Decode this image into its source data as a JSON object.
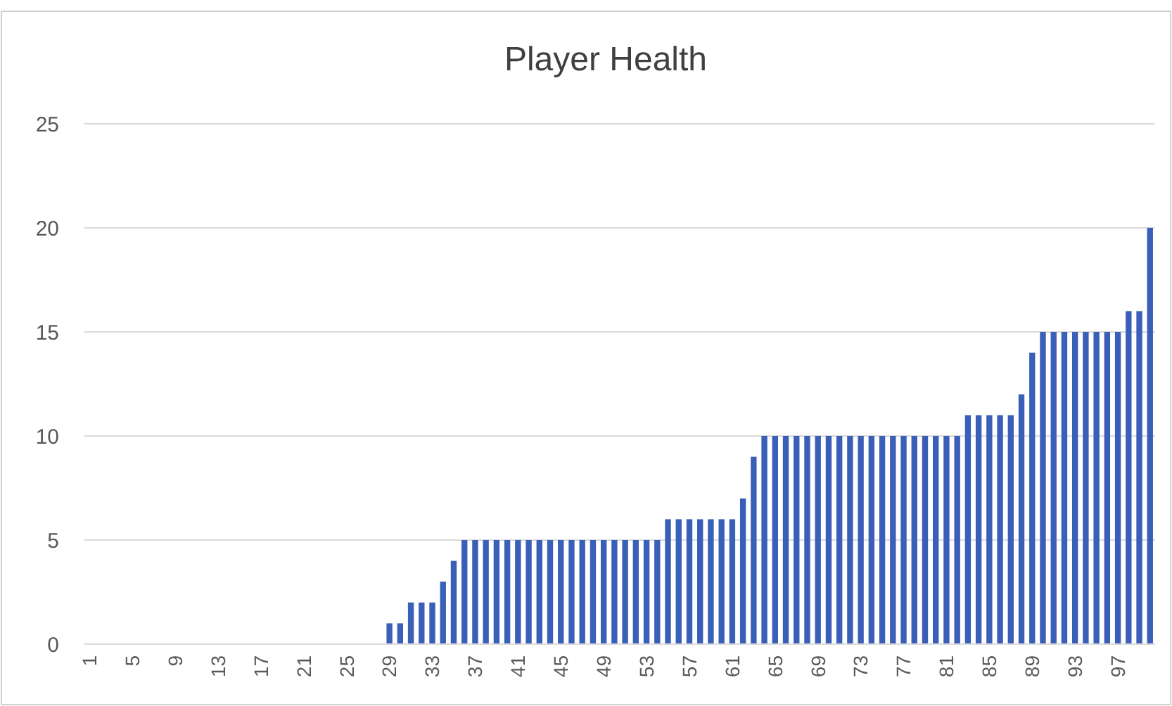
{
  "chart_data": {
    "type": "bar",
    "title": "Player Health",
    "categories": [
      "1",
      null,
      null,
      null,
      "5",
      null,
      null,
      null,
      "9",
      null,
      null,
      null,
      "13",
      null,
      null,
      null,
      "17",
      null,
      null,
      null,
      "21",
      null,
      null,
      null,
      "25",
      null,
      null,
      null,
      "29",
      null,
      null,
      null,
      "33",
      null,
      null,
      null,
      "37",
      null,
      null,
      null,
      "41",
      null,
      null,
      null,
      "45",
      null,
      null,
      null,
      "49",
      null,
      null,
      null,
      "53",
      null,
      null,
      null,
      "57",
      null,
      null,
      null,
      "61",
      null,
      null,
      null,
      "65",
      null,
      null,
      null,
      "69",
      null,
      null,
      null,
      "73",
      null,
      null,
      null,
      "77",
      null,
      null,
      null,
      "81",
      null,
      null,
      null,
      "85",
      null,
      null,
      null,
      "89",
      null,
      null,
      null,
      "93",
      null,
      null,
      null,
      "97",
      null,
      null,
      null
    ],
    "values": [
      0,
      0,
      0,
      0,
      0,
      0,
      0,
      0,
      0,
      0,
      0,
      0,
      0,
      0,
      0,
      0,
      0,
      0,
      0,
      0,
      0,
      0,
      0,
      0,
      0,
      0,
      0,
      0,
      1,
      1,
      2,
      2,
      2,
      3,
      4,
      5,
      5,
      5,
      5,
      5,
      5,
      5,
      5,
      5,
      5,
      5,
      5,
      5,
      5,
      5,
      5,
      5,
      5,
      5,
      6,
      6,
      6,
      6,
      6,
      6,
      6,
      7,
      9,
      10,
      10,
      10,
      10,
      10,
      10,
      10,
      10,
      10,
      10,
      10,
      10,
      10,
      10,
      10,
      10,
      10,
      10,
      10,
      11,
      11,
      11,
      11,
      11,
      12,
      14,
      15,
      15,
      15,
      15,
      15,
      15,
      15,
      15,
      16,
      16,
      20
    ],
    "color": "#3a5fb8",
    "ylim": [
      0,
      25
    ],
    "yticks": [
      0,
      5,
      10,
      15,
      20,
      25
    ],
    "grid": "y"
  }
}
